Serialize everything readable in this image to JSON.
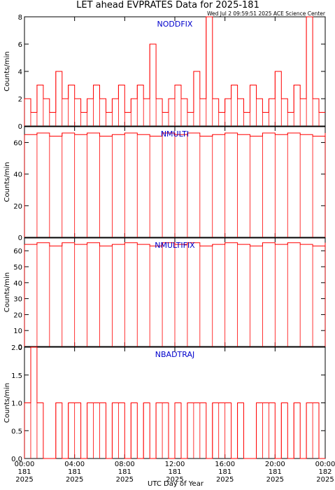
{
  "title": "LET ahead EVPRATES Data for 2025-181",
  "timestamp": "Wed Jul  2 09:59:51 2025 ACE Science Center",
  "x_axis_label": "UTC Day of Year",
  "x_ticks": [
    {
      "time": "00:00",
      "day": "181",
      "year": "2025"
    },
    {
      "time": "04:00",
      "day": "181",
      "year": "2025"
    },
    {
      "time": "08:00",
      "day": "181",
      "year": "2025"
    },
    {
      "time": "12:00",
      "day": "181",
      "year": "2025"
    },
    {
      "time": "16:00",
      "day": "181",
      "year": "2025"
    },
    {
      "time": "20:00",
      "day": "181",
      "year": "2025"
    },
    {
      "time": "00:00",
      "day": "182",
      "year": "2025"
    }
  ],
  "colors": {
    "trace": "#ff0000",
    "panel_label": "#0000cc",
    "axes": "#000000"
  },
  "chart_data": [
    {
      "type": "line",
      "title": "NODDFIX",
      "ylabel": "Counts/min",
      "ylim": [
        0,
        8
      ],
      "yticks": [
        "0",
        "2",
        "4",
        "6",
        "8"
      ],
      "xlim_hours": [
        0,
        24
      ],
      "series": [
        {
          "name": "NODDFIX",
          "x_hours": [
            0,
            0.5,
            1,
            1.5,
            2,
            2.5,
            3,
            3.5,
            4,
            4.5,
            5,
            5.5,
            6,
            6.5,
            7,
            7.5,
            8,
            8.5,
            9,
            9.5,
            10,
            10.5,
            11,
            11.5,
            12,
            12.5,
            13,
            13.5,
            14,
            14.5,
            15,
            15.5,
            16,
            16.5,
            17,
            17.5,
            18,
            18.5,
            19,
            19.5,
            20,
            20.5,
            21,
            21.5,
            22,
            22.5,
            23,
            23.5
          ],
          "values": [
            2,
            1,
            3,
            2,
            1,
            4,
            2,
            3,
            2,
            1,
            2,
            3,
            2,
            1,
            2,
            3,
            1,
            2,
            3,
            2,
            6,
            2,
            1,
            2,
            3,
            2,
            1,
            4,
            2,
            8,
            2,
            1,
            2,
            3,
            2,
            1,
            3,
            2,
            1,
            2,
            4,
            2,
            1,
            3,
            2,
            8,
            2,
            1
          ]
        }
      ]
    },
    {
      "type": "line",
      "title": "NMULTI",
      "ylabel": "Counts/min",
      "ylim": [
        0,
        70
      ],
      "yticks": [
        "0",
        "20",
        "40",
        "60"
      ],
      "xlim_hours": [
        0,
        24
      ],
      "series": [
        {
          "name": "NMULTI",
          "x_hours": [
            0,
            1,
            2,
            3,
            4,
            5,
            6,
            7,
            8,
            9,
            10,
            11,
            12,
            13,
            14,
            15,
            16,
            17,
            18,
            19,
            20,
            21,
            22,
            23,
            24
          ],
          "values": [
            65,
            66,
            64,
            66,
            65,
            66,
            64,
            65,
            66,
            65,
            64,
            66,
            65,
            66,
            64,
            65,
            66,
            65,
            64,
            66,
            65,
            66,
            65,
            64,
            66
          ]
        }
      ]
    },
    {
      "type": "line",
      "title": "NMULTIFIX",
      "ylabel": "Counts/min",
      "ylim": [
        0,
        68
      ],
      "yticks": [
        "0",
        "10",
        "20",
        "30",
        "40",
        "50",
        "60"
      ],
      "xlim_hours": [
        0,
        24
      ],
      "series": [
        {
          "name": "NMULTIFIX",
          "x_hours": [
            0,
            1,
            2,
            3,
            4,
            5,
            6,
            7,
            8,
            9,
            10,
            11,
            12,
            13,
            14,
            15,
            16,
            17,
            18,
            19,
            20,
            21,
            22,
            23,
            24
          ],
          "values": [
            64,
            65,
            63,
            65,
            64,
            65,
            63,
            64,
            65,
            64,
            63,
            65,
            64,
            65,
            63,
            64,
            65,
            64,
            63,
            65,
            64,
            65,
            64,
            63,
            65
          ]
        }
      ]
    },
    {
      "type": "line",
      "title": "NBADTRAJ",
      "ylabel": "Counts/min",
      "ylim": [
        0,
        2
      ],
      "yticks": [
        "0.0",
        "0.5",
        "1.0",
        "1.5",
        "2.0"
      ],
      "xlim_hours": [
        0,
        24
      ],
      "series": [
        {
          "name": "NBADTRAJ",
          "x_hours": [
            0,
            0.5,
            1,
            1.5,
            2,
            2.5,
            3,
            3.5,
            4,
            4.5,
            5,
            5.5,
            6,
            6.5,
            7,
            7.5,
            8,
            8.5,
            9,
            9.5,
            10,
            10.5,
            11,
            11.5,
            12,
            12.5,
            13,
            13.5,
            14,
            14.5,
            15,
            15.5,
            16,
            16.5,
            17,
            17.5,
            18,
            18.5,
            19,
            19.5,
            20,
            20.5,
            21,
            21.5,
            22,
            22.5,
            23,
            23.5
          ],
          "values": [
            1,
            2,
            1,
            0,
            0,
            1,
            0,
            1,
            1,
            0,
            1,
            1,
            1,
            0,
            1,
            1,
            0,
            1,
            0,
            1,
            0,
            1,
            1,
            0,
            1,
            0,
            1,
            1,
            1,
            0,
            1,
            1,
            1,
            0,
            1,
            0,
            0,
            1,
            1,
            1,
            0,
            1,
            0,
            1,
            0,
            1,
            1,
            0
          ]
        }
      ]
    }
  ]
}
